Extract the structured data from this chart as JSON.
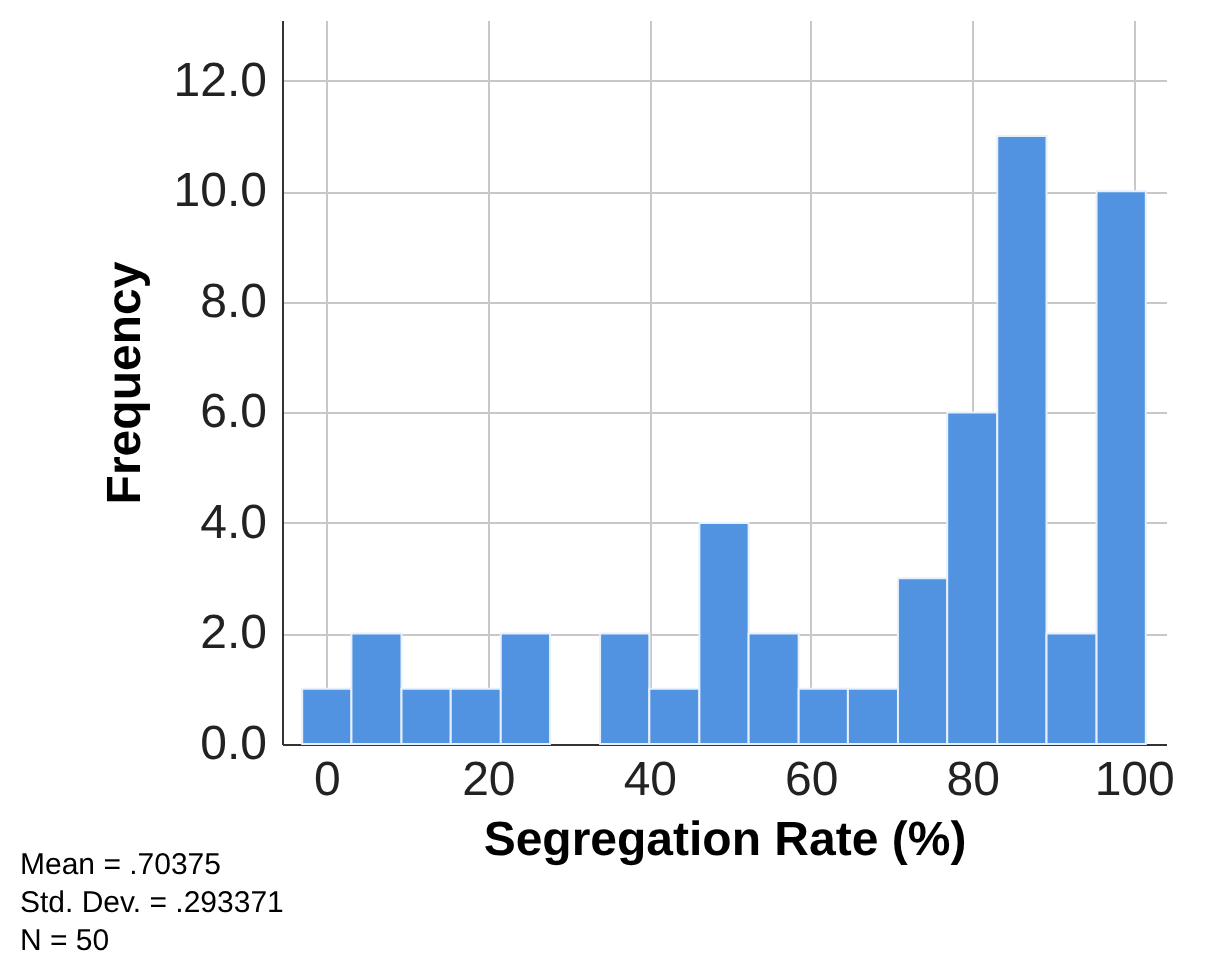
{
  "chart_data": {
    "type": "histogram",
    "xlabel": "Segregation Rate (%)",
    "ylabel": "Frequency",
    "bins": [
      -3,
      3.1,
      9.3,
      15.4,
      21.6,
      27.7,
      33.9,
      40,
      46.2,
      52.3,
      58.5,
      64.6,
      70.8,
      76.9,
      83.1,
      89.2,
      95.4,
      101.5
    ],
    "values": [
      1,
      2,
      1,
      1,
      2,
      0,
      2,
      1,
      4,
      2,
      1,
      1,
      3,
      6,
      11,
      2,
      10
    ],
    "color": "#5193e0",
    "xlim": [
      -5.5,
      104
    ],
    "xticks": [
      0,
      20,
      40,
      60,
      80,
      100
    ],
    "ylim": [
      0,
      13.1
    ],
    "yticks": [
      {
        "value": 0,
        "label": "0.0"
      },
      {
        "value": 2,
        "label": "2.0"
      },
      {
        "value": 4,
        "label": "4.0"
      },
      {
        "value": 6,
        "label": "6.0"
      },
      {
        "value": 8,
        "label": "8.0"
      },
      {
        "value": 10,
        "label": "10.0"
      },
      {
        "value": 12,
        "label": "12.0"
      }
    ],
    "grid": true,
    "annotations": [
      "Mean = .70375",
      "Std. Dev. = .293371",
      "N = 50"
    ]
  }
}
